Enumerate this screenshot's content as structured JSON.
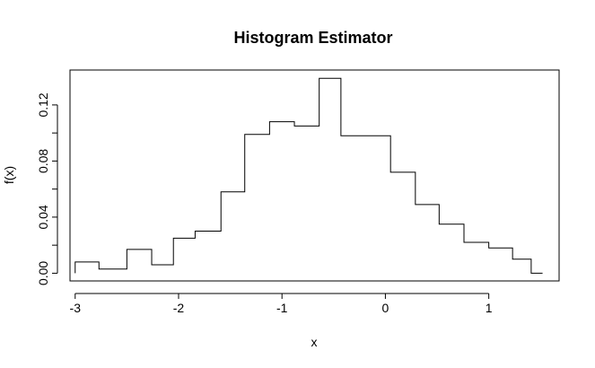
{
  "chart_data": {
    "type": "line",
    "subtype": "step-histogram",
    "title": "Histogram Estimator",
    "xlabel": "x",
    "ylabel": "f(x)",
    "xlim": [
      -3.05,
      1.68
    ],
    "ylim": [
      -0.0055,
      0.1449
    ],
    "x_ticks": [
      -3,
      -2,
      -1,
      0,
      1
    ],
    "x_tick_labels": [
      "-3",
      "-2",
      "-1",
      "0",
      "1"
    ],
    "y_ticks": [
      0.0,
      0.04,
      0.08,
      0.12
    ],
    "y_tick_labels": [
      "0.00",
      "0.04",
      "0.08",
      "0.12"
    ],
    "y_minor_ticks": [
      0.02,
      0.06,
      0.1
    ],
    "grid": false,
    "legend": "none",
    "line_color": "#000000",
    "series": [
      {
        "step_edges": [
          -3.0,
          -2.77,
          -2.5,
          -2.26,
          -2.05,
          -1.84,
          -1.59,
          -1.36,
          -1.12,
          -0.88,
          -0.64,
          -0.43,
          0.05,
          0.29,
          0.52,
          0.76,
          1.0,
          1.23,
          1.41,
          1.52
        ],
        "values": [
          0.008,
          0.003,
          0.017,
          0.006,
          0.025,
          0.03,
          0.058,
          0.099,
          0.108,
          0.105,
          0.139,
          0.098,
          0.072,
          0.049,
          0.035,
          0.022,
          0.018,
          0.01,
          0.0
        ]
      }
    ]
  }
}
